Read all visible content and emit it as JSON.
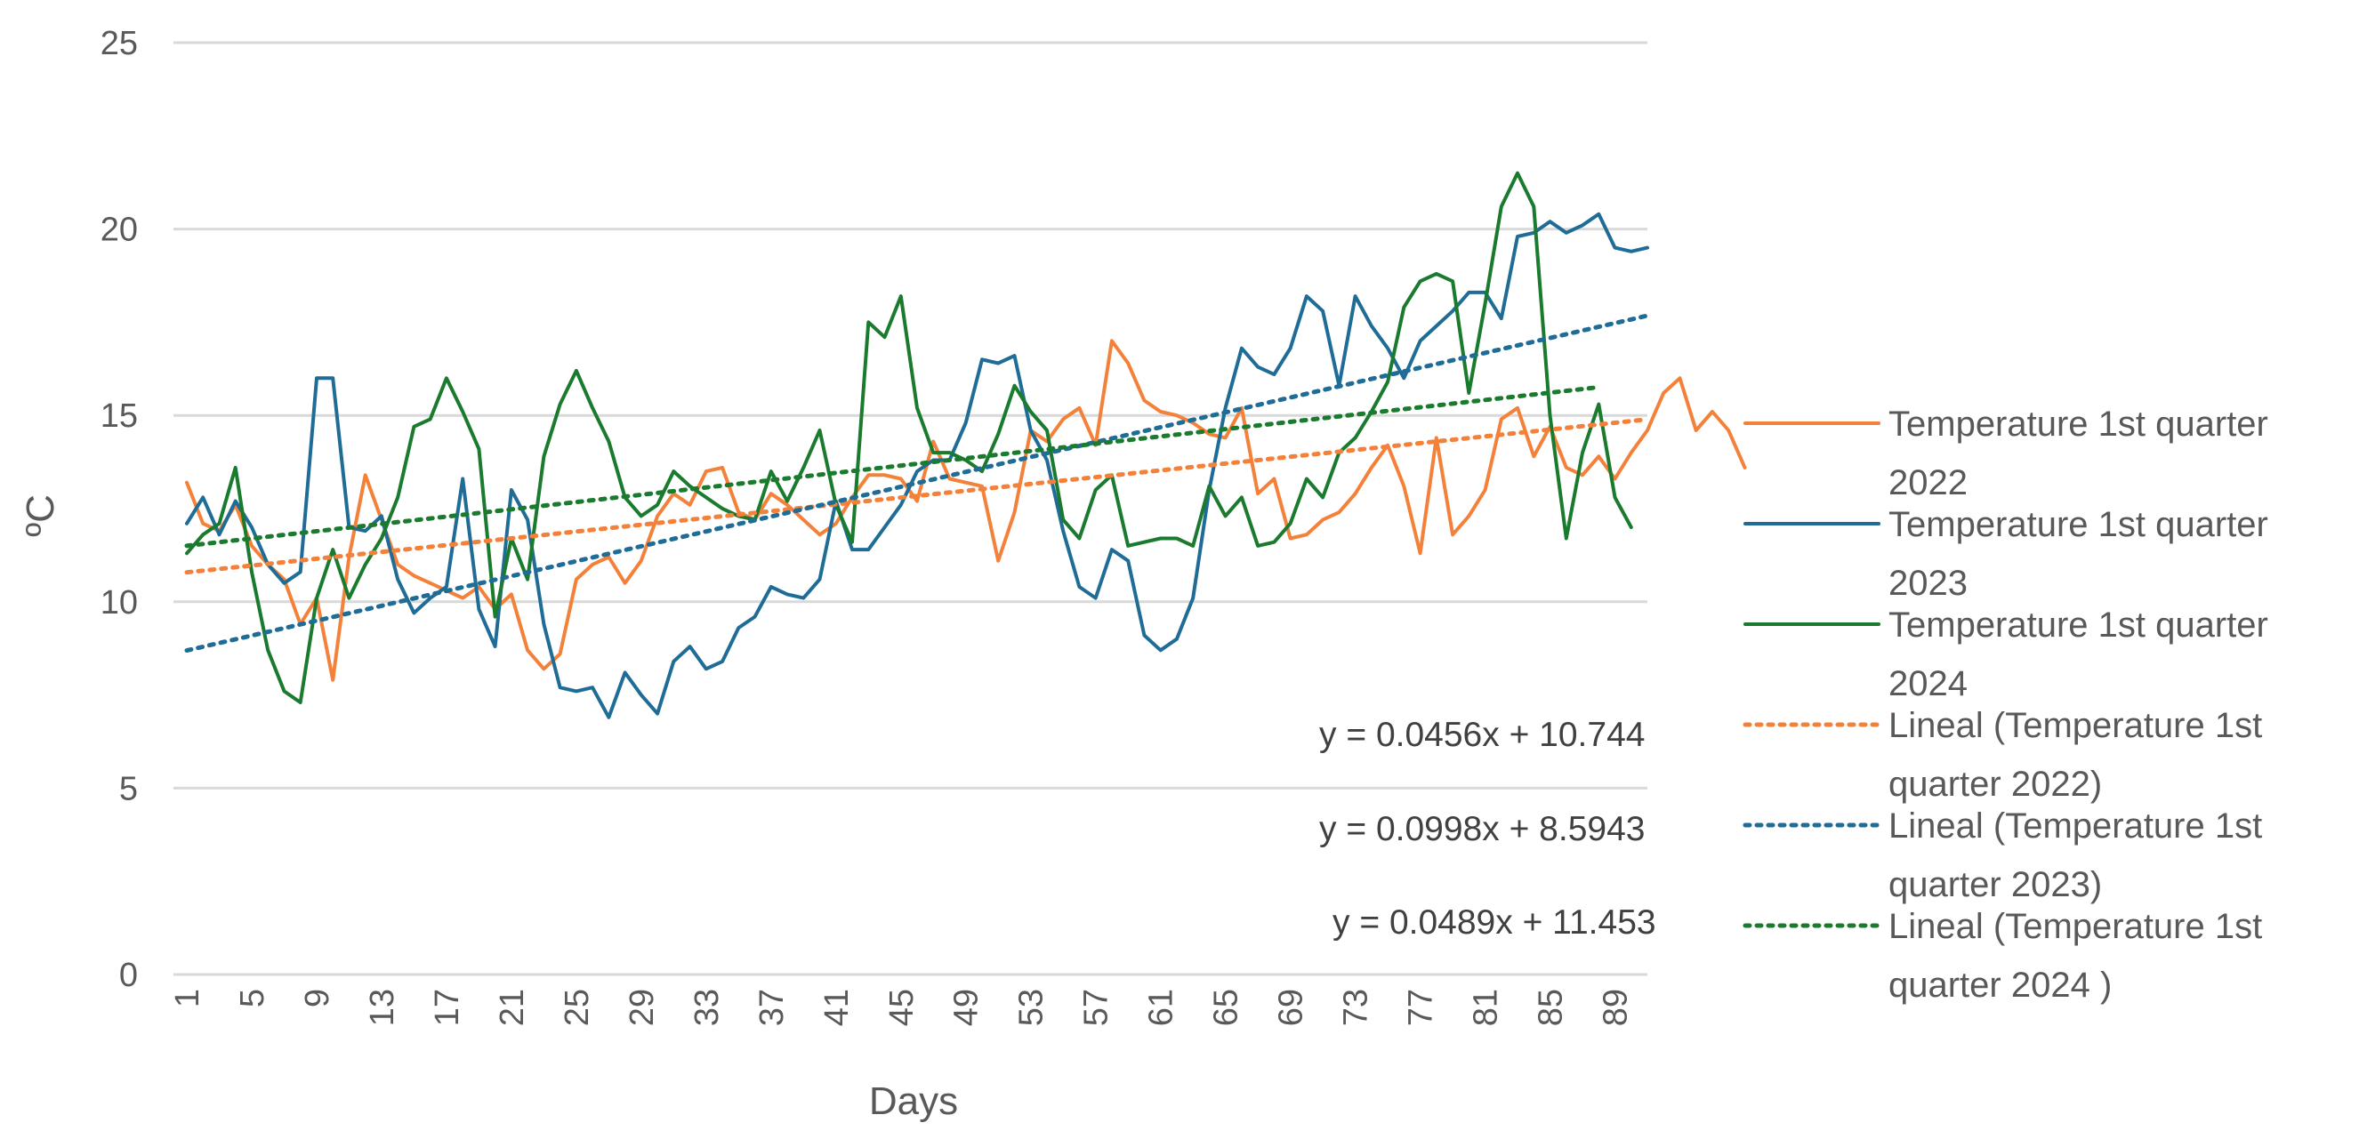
{
  "chart_data": {
    "type": "line",
    "title": "",
    "xlabel": "Days",
    "ylabel": "ºC",
    "ylim": [
      0,
      25
    ],
    "yticks": [
      0,
      5,
      10,
      15,
      20,
      25
    ],
    "xlim": [
      1,
      91
    ],
    "xtick_labels": [
      "1",
      "5",
      "9",
      "13",
      "17",
      "21",
      "25",
      "29",
      "33",
      "37",
      "41",
      "45",
      "49",
      "53",
      "57",
      "61",
      "65",
      "69",
      "73",
      "77",
      "81",
      "85",
      "89"
    ],
    "grid": "horizontal",
    "legend_position": "right",
    "series": [
      {
        "name": "Temperature 1st quarter 2022",
        "legend_lines": [
          "Temperature 1st quarter",
          "2022"
        ],
        "color": "#F4813A",
        "style": "solid",
        "values": [
          13.2,
          12.1,
          11.9,
          12.6,
          11.5,
          11.0,
          10.6,
          9.4,
          10.1,
          7.9,
          11.2,
          13.4,
          12.2,
          11.0,
          10.7,
          10.5,
          10.3,
          10.1,
          10.4,
          9.8,
          10.2,
          8.7,
          8.2,
          8.6,
          10.6,
          11.0,
          11.2,
          10.5,
          11.1,
          12.3,
          12.9,
          12.6,
          13.5,
          13.6,
          12.4,
          12.2,
          12.9,
          12.6,
          12.2,
          11.8,
          12.1,
          12.8,
          13.4,
          13.4,
          13.3,
          12.7,
          14.3,
          13.3,
          13.2,
          13.1,
          11.1,
          12.4,
          14.6,
          14.3,
          14.9,
          15.2,
          14.2,
          17.0,
          16.4,
          15.4,
          15.1,
          15.0,
          14.8,
          14.5,
          14.4,
          15.2,
          12.9,
          13.3,
          11.7,
          11.8,
          12.2,
          12.4,
          12.9,
          13.6,
          14.2,
          13.1,
          11.3,
          14.4,
          11.8,
          12.3,
          13.0,
          14.9,
          15.2,
          13.9,
          14.7,
          13.6,
          13.4,
          13.9,
          13.3,
          14.0,
          14.6,
          15.6,
          16.0,
          14.6,
          15.1,
          14.6,
          13.6
        ]
      },
      {
        "name": "Temperature 1st quarter 2023",
        "legend_lines": [
          "Temperature 1st quarter",
          "2023"
        ],
        "color": "#1F6C96",
        "style": "solid",
        "values": [
          12.1,
          12.8,
          11.8,
          12.7,
          12.0,
          11.0,
          10.5,
          10.8,
          16.0,
          16.0,
          12.0,
          11.9,
          12.3,
          10.6,
          9.7,
          10.1,
          10.4,
          13.3,
          9.8,
          8.8,
          13.0,
          12.2,
          9.4,
          7.7,
          7.6,
          7.7,
          6.9,
          8.1,
          7.5,
          7.0,
          8.4,
          8.8,
          8.2,
          8.4,
          9.3,
          9.6,
          10.4,
          10.2,
          10.1,
          10.6,
          12.7,
          11.4,
          11.4,
          12.0,
          12.6,
          13.5,
          13.8,
          13.8,
          14.8,
          16.5,
          16.4,
          16.6,
          14.6,
          13.8,
          11.9,
          10.4,
          10.1,
          11.4,
          11.1,
          9.1,
          8.7,
          9.0,
          10.1,
          13.0,
          15.2,
          16.8,
          16.3,
          16.1,
          16.8,
          18.2,
          17.8,
          15.8,
          18.2,
          17.4,
          16.8,
          16.0,
          17.0,
          17.4,
          17.8,
          18.3,
          18.3,
          17.6,
          19.8,
          19.9,
          20.2,
          19.9,
          20.1,
          20.4,
          19.5,
          19.4,
          19.5
        ]
      },
      {
        "name": "Temperature 1st quarter 2024",
        "legend_lines": [
          "Temperature 1st quarter",
          "2024"
        ],
        "color": "#1A7A2E",
        "style": "solid",
        "values": [
          11.3,
          11.8,
          12.1,
          13.6,
          10.8,
          8.7,
          7.6,
          7.3,
          10.1,
          11.4,
          10.1,
          11.0,
          11.7,
          12.8,
          14.7,
          14.9,
          16.0,
          15.1,
          14.1,
          9.6,
          11.7,
          10.6,
          13.9,
          15.3,
          16.2,
          15.2,
          14.3,
          12.8,
          12.3,
          12.6,
          13.5,
          13.1,
          12.8,
          12.5,
          12.3,
          12.2,
          13.5,
          12.7,
          13.6,
          14.6,
          12.6,
          11.6,
          17.5,
          17.1,
          18.2,
          15.2,
          14.0,
          14.0,
          13.8,
          13.5,
          14.5,
          15.8,
          15.1,
          14.6,
          12.2,
          11.7,
          13.0,
          13.4,
          11.5,
          11.6,
          11.7,
          11.7,
          11.5,
          13.1,
          12.3,
          12.8,
          11.5,
          11.6,
          12.1,
          13.3,
          12.8,
          14.0,
          14.4,
          15.1,
          15.9,
          17.9,
          18.6,
          18.8,
          18.6,
          15.6,
          18.0,
          20.6,
          21.5,
          20.6,
          15.0,
          11.7,
          14.0,
          15.3,
          12.8,
          12.0
        ]
      }
    ],
    "trendlines": [
      {
        "name": "Lineal (Temperature 1st quarter 2022)",
        "legend_lines": [
          "Lineal (Temperature 1st",
          "quarter 2022)"
        ],
        "color": "#F4813A",
        "style": "dotted",
        "slope": 0.0456,
        "intercept": 10.744,
        "x_end": 91,
        "equation": "y = 0.0456x + 10.744"
      },
      {
        "name": "Lineal (Temperature 1st quarter 2023)",
        "legend_lines": [
          "Lineal (Temperature 1st",
          "quarter 2023)"
        ],
        "color": "#1F6C96",
        "style": "dotted",
        "slope": 0.0998,
        "intercept": 8.5943,
        "x_end": 91,
        "equation": "y = 0.0998x + 8.5943"
      },
      {
        "name": "Lineal (Temperature 1st quarter 2024)",
        "legend_lines": [
          "Lineal (Temperature 1st",
          "quarter 2024 )"
        ],
        "color": "#1A7A2E",
        "style": "dotted",
        "slope": 0.0489,
        "intercept": 11.453,
        "x_end": 88,
        "equation": "y = 0.0489x + 11.453"
      }
    ]
  }
}
